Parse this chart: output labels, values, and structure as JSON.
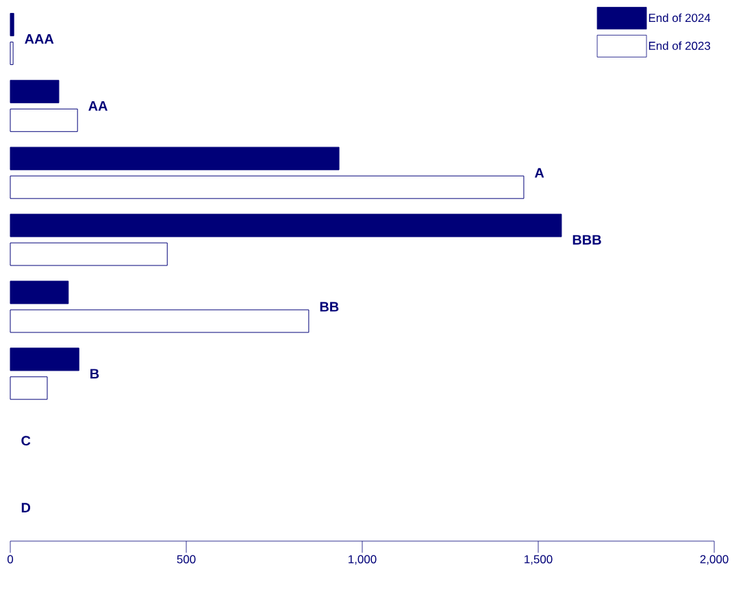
{
  "chart_data": {
    "type": "bar",
    "orientation": "horizontal",
    "categories": [
      "AAA",
      "AA",
      "A",
      "BBB",
      "BB",
      "B",
      "C",
      "D"
    ],
    "series": [
      {
        "name": "End of 2024",
        "color": "#000078",
        "values": [
          10,
          138,
          934,
          1566,
          165,
          195,
          0,
          0
        ]
      },
      {
        "name": "End of 2023",
        "color": "#ffffff",
        "values": [
          8,
          191,
          1459,
          446,
          848,
          105,
          0,
          0
        ]
      }
    ],
    "xlim": [
      0,
      2000
    ],
    "xticks": [
      0,
      500,
      {
        "value": 1000,
        "label": "1,000"
      },
      {
        "value": 1500,
        "label": "1,500"
      },
      {
        "value": 2000,
        "label": "2,000"
      }
    ],
    "legend": "top right",
    "grid": false
  }
}
